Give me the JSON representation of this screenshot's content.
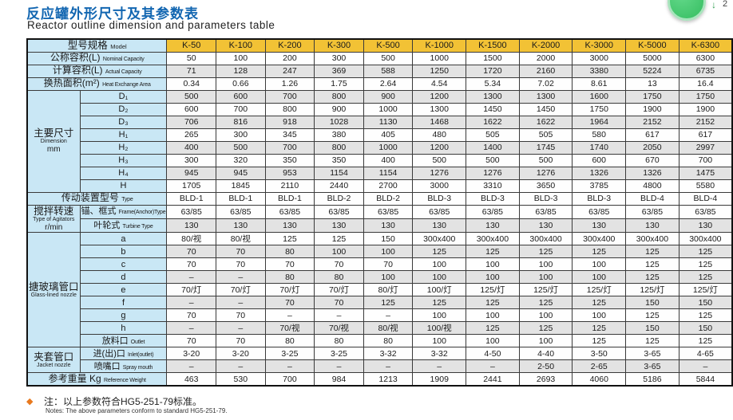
{
  "page": {
    "title_zh": "反应罐外形尺寸及其参数表",
    "title_en": "Reactor outline dimension and parameters table"
  },
  "badge": {
    "arrow": "↓",
    "count": "2",
    "color": "#3bc468"
  },
  "note": {
    "bullet": "◆",
    "zh": "注：以上参数符合HG5-251-79标准。",
    "en": "Notes: The above parameters conform to standard HG5-251-79."
  },
  "table": {
    "model_header": {
      "zh": "型号规格",
      "en": "Model"
    },
    "models": [
      "K-50",
      "K-100",
      "K-200",
      "K-300",
      "K-500",
      "K-1000",
      "K-1500",
      "K-2000",
      "K-3000",
      "K-5000",
      "K-6300"
    ],
    "groups": {
      "dimension": {
        "zh": "主要尺寸",
        "en": "Dimension",
        "en2": "mm",
        "span": 8
      },
      "agitator": {
        "zh": "搅拌转速",
        "en": "Type of Agitators",
        "en2": "r/min",
        "span": 2
      },
      "nozzle": {
        "zh": "搪玻璃管口",
        "en": "Glass-lined nozzle",
        "en2": "",
        "span": 9
      },
      "jacket": {
        "zh": "夹套管口",
        "en": "Jacket nozzle",
        "en2": "",
        "span": 2
      }
    },
    "rows": [
      {
        "key": "nominal-capacity",
        "kind": "simple",
        "label_zh": "公称容积(L)",
        "label_en": "Nominal Capacity",
        "shade": false,
        "values": [
          "50",
          "100",
          "200",
          "300",
          "500",
          "1000",
          "1500",
          "2000",
          "3000",
          "5000",
          "6300"
        ]
      },
      {
        "key": "actual-capacity",
        "kind": "simple",
        "label_zh": "计算容积(L)",
        "label_en": "Actual Capacity",
        "shade": true,
        "values": [
          "71",
          "128",
          "247",
          "369",
          "588",
          "1250",
          "1720",
          "2160",
          "3380",
          "5224",
          "6735"
        ]
      },
      {
        "key": "heat-exchange-area",
        "kind": "simple",
        "label_zh": "换热面积(m²)",
        "label_en": "Heat Exchange Area",
        "shade": false,
        "values": [
          "0.34",
          "0.66",
          "1.26",
          "1.75",
          "2.64",
          "4.54",
          "5.34",
          "7.02",
          "8.61",
          "13",
          "16.4"
        ]
      },
      {
        "key": "dim-d1",
        "kind": "sub",
        "group": "dimension",
        "group_start": true,
        "sub_zh": "D₁",
        "sub_en": "",
        "shade": true,
        "values": [
          "500",
          "600",
          "700",
          "800",
          "900",
          "1200",
          "1300",
          "1300",
          "1600",
          "1750",
          "1750"
        ]
      },
      {
        "key": "dim-d2",
        "kind": "sub",
        "group": "dimension",
        "sub_zh": "D₂",
        "sub_en": "",
        "shade": false,
        "values": [
          "600",
          "700",
          "800",
          "900",
          "1000",
          "1300",
          "1450",
          "1450",
          "1750",
          "1900",
          "1900"
        ]
      },
      {
        "key": "dim-d3",
        "kind": "sub",
        "group": "dimension",
        "sub_zh": "D₃",
        "sub_en": "",
        "shade": true,
        "values": [
          "706",
          "816",
          "918",
          "1028",
          "1130",
          "1468",
          "1622",
          "1622",
          "1964",
          "2152",
          "2152"
        ]
      },
      {
        "key": "dim-h1",
        "kind": "sub",
        "group": "dimension",
        "sub_zh": "H₁",
        "sub_en": "",
        "shade": false,
        "values": [
          "265",
          "300",
          "345",
          "380",
          "405",
          "480",
          "505",
          "505",
          "580",
          "617",
          "617"
        ]
      },
      {
        "key": "dim-h2",
        "kind": "sub",
        "group": "dimension",
        "sub_zh": "H₂",
        "sub_en": "",
        "shade": true,
        "values": [
          "400",
          "500",
          "700",
          "800",
          "1000",
          "1200",
          "1400",
          "1745",
          "1740",
          "2050",
          "2997"
        ]
      },
      {
        "key": "dim-h3",
        "kind": "sub",
        "group": "dimension",
        "sub_zh": "H₃",
        "sub_en": "",
        "shade": false,
        "values": [
          "300",
          "320",
          "350",
          "350",
          "400",
          "500",
          "500",
          "500",
          "600",
          "670",
          "700"
        ]
      },
      {
        "key": "dim-h4",
        "kind": "sub",
        "group": "dimension",
        "sub_zh": "H₄",
        "sub_en": "",
        "shade": true,
        "values": [
          "945",
          "945",
          "953",
          "1154",
          "1154",
          "1276",
          "1276",
          "1276",
          "1326",
          "1326",
          "1475"
        ]
      },
      {
        "key": "dim-h",
        "kind": "sub",
        "group": "dimension",
        "sub_zh": "H",
        "sub_en": "",
        "shade": false,
        "values": [
          "1705",
          "1845",
          "2110",
          "2440",
          "2700",
          "3000",
          "3310",
          "3650",
          "3785",
          "4800",
          "5580"
        ]
      },
      {
        "key": "drive-type",
        "kind": "simple",
        "label_zh": "传动装置型号",
        "label_en": "Type",
        "shade": false,
        "values": [
          "BLD-1",
          "BLD-1",
          "BLD-1",
          "BLD-2",
          "BLD-2",
          "BLD-3",
          "BLD-3",
          "BLD-3",
          "BLD-3",
          "BLD-4",
          "BLD-4"
        ]
      },
      {
        "key": "agitator-frame-anchor",
        "kind": "sub",
        "group": "agitator",
        "group_start": true,
        "sub_zh": "锚、框式",
        "sub_en": "Frame(Anchor)Type",
        "shade": false,
        "values": [
          "63/85",
          "63/85",
          "63/85",
          "63/85",
          "63/85",
          "63/85",
          "63/85",
          "63/85",
          "63/85",
          "63/85",
          "63/85"
        ]
      },
      {
        "key": "agitator-turbine",
        "kind": "sub",
        "group": "agitator",
        "sub_zh": "叶轮式",
        "sub_en": "Turbine Type",
        "shade": true,
        "values": [
          "130",
          "130",
          "130",
          "130",
          "130",
          "130",
          "130",
          "130",
          "130",
          "130",
          "130"
        ]
      },
      {
        "key": "nozzle-a",
        "kind": "sub",
        "group": "nozzle",
        "group_start": true,
        "sub_zh": "a",
        "sub_en": "",
        "shade": false,
        "values": [
          "80/视",
          "80/视",
          "125",
          "125",
          "150",
          "300x400",
          "300x400",
          "300x400",
          "300x400",
          "300x400",
          "300x400"
        ]
      },
      {
        "key": "nozzle-b",
        "kind": "sub",
        "group": "nozzle",
        "sub_zh": "b",
        "sub_en": "",
        "shade": true,
        "values": [
          "70",
          "70",
          "80",
          "100",
          "100",
          "125",
          "125",
          "125",
          "125",
          "125",
          "125"
        ]
      },
      {
        "key": "nozzle-c",
        "kind": "sub",
        "group": "nozzle",
        "sub_zh": "c",
        "sub_en": "",
        "shade": false,
        "values": [
          "70",
          "70",
          "70",
          "70",
          "70",
          "100",
          "100",
          "100",
          "100",
          "125",
          "125"
        ]
      },
      {
        "key": "nozzle-d",
        "kind": "sub",
        "group": "nozzle",
        "sub_zh": "d",
        "sub_en": "",
        "shade": true,
        "values": [
          "–",
          "–",
          "80",
          "80",
          "100",
          "100",
          "100",
          "100",
          "100",
          "125",
          "125"
        ]
      },
      {
        "key": "nozzle-e",
        "kind": "sub",
        "group": "nozzle",
        "sub_zh": "e",
        "sub_en": "",
        "shade": false,
        "values": [
          "70/灯",
          "70/灯",
          "70/灯",
          "70/灯",
          "80/灯",
          "100/灯",
          "125/灯",
          "125/灯",
          "125/灯",
          "125/灯",
          "125/灯"
        ]
      },
      {
        "key": "nozzle-f",
        "kind": "sub",
        "group": "nozzle",
        "sub_zh": "f",
        "sub_en": "",
        "shade": true,
        "values": [
          "–",
          "–",
          "70",
          "70",
          "125",
          "125",
          "125",
          "125",
          "125",
          "150",
          "150"
        ]
      },
      {
        "key": "nozzle-g",
        "kind": "sub",
        "group": "nozzle",
        "sub_zh": "g",
        "sub_en": "",
        "shade": false,
        "values": [
          "70",
          "70",
          "–",
          "–",
          "–",
          "100",
          "100",
          "100",
          "100",
          "125",
          "125"
        ]
      },
      {
        "key": "nozzle-h",
        "kind": "sub",
        "group": "nozzle",
        "sub_zh": "h",
        "sub_en": "",
        "shade": true,
        "values": [
          "–",
          "–",
          "70/视",
          "70/视",
          "80/视",
          "100/视",
          "125",
          "125",
          "125",
          "150",
          "150"
        ]
      },
      {
        "key": "nozzle-outlet",
        "kind": "sub",
        "group": "nozzle",
        "sub_zh": "放料口",
        "sub_en": "Outlet",
        "shade": false,
        "values": [
          "70",
          "70",
          "80",
          "80",
          "80",
          "100",
          "100",
          "100",
          "125",
          "125",
          "125"
        ]
      },
      {
        "key": "jacket-inlet-outlet",
        "kind": "sub",
        "group": "jacket",
        "group_start": true,
        "sub_zh": "进(出)口",
        "sub_en": "Inlet(outlet)",
        "shade": false,
        "values": [
          "3-20",
          "3-20",
          "3-25",
          "3-25",
          "3-32",
          "3-32",
          "4-50",
          "4-40",
          "3-50",
          "3-65",
          "4-65"
        ]
      },
      {
        "key": "jacket-spray-mouth",
        "kind": "sub",
        "group": "jacket",
        "sub_zh": "喷嘴口",
        "sub_en": "Spray mouth",
        "shade": true,
        "values": [
          "–",
          "–",
          "–",
          "–",
          "–",
          "–",
          "–",
          "2-50",
          "2-65",
          "3-65",
          "–"
        ]
      },
      {
        "key": "reference-weight",
        "kind": "simple",
        "label_zh": "参考重量 Kg",
        "label_en": "Reference Weight",
        "shade": false,
        "values": [
          "463",
          "530",
          "700",
          "984",
          "1213",
          "1909",
          "2441",
          "2693",
          "4060",
          "5186",
          "5844"
        ]
      }
    ]
  }
}
